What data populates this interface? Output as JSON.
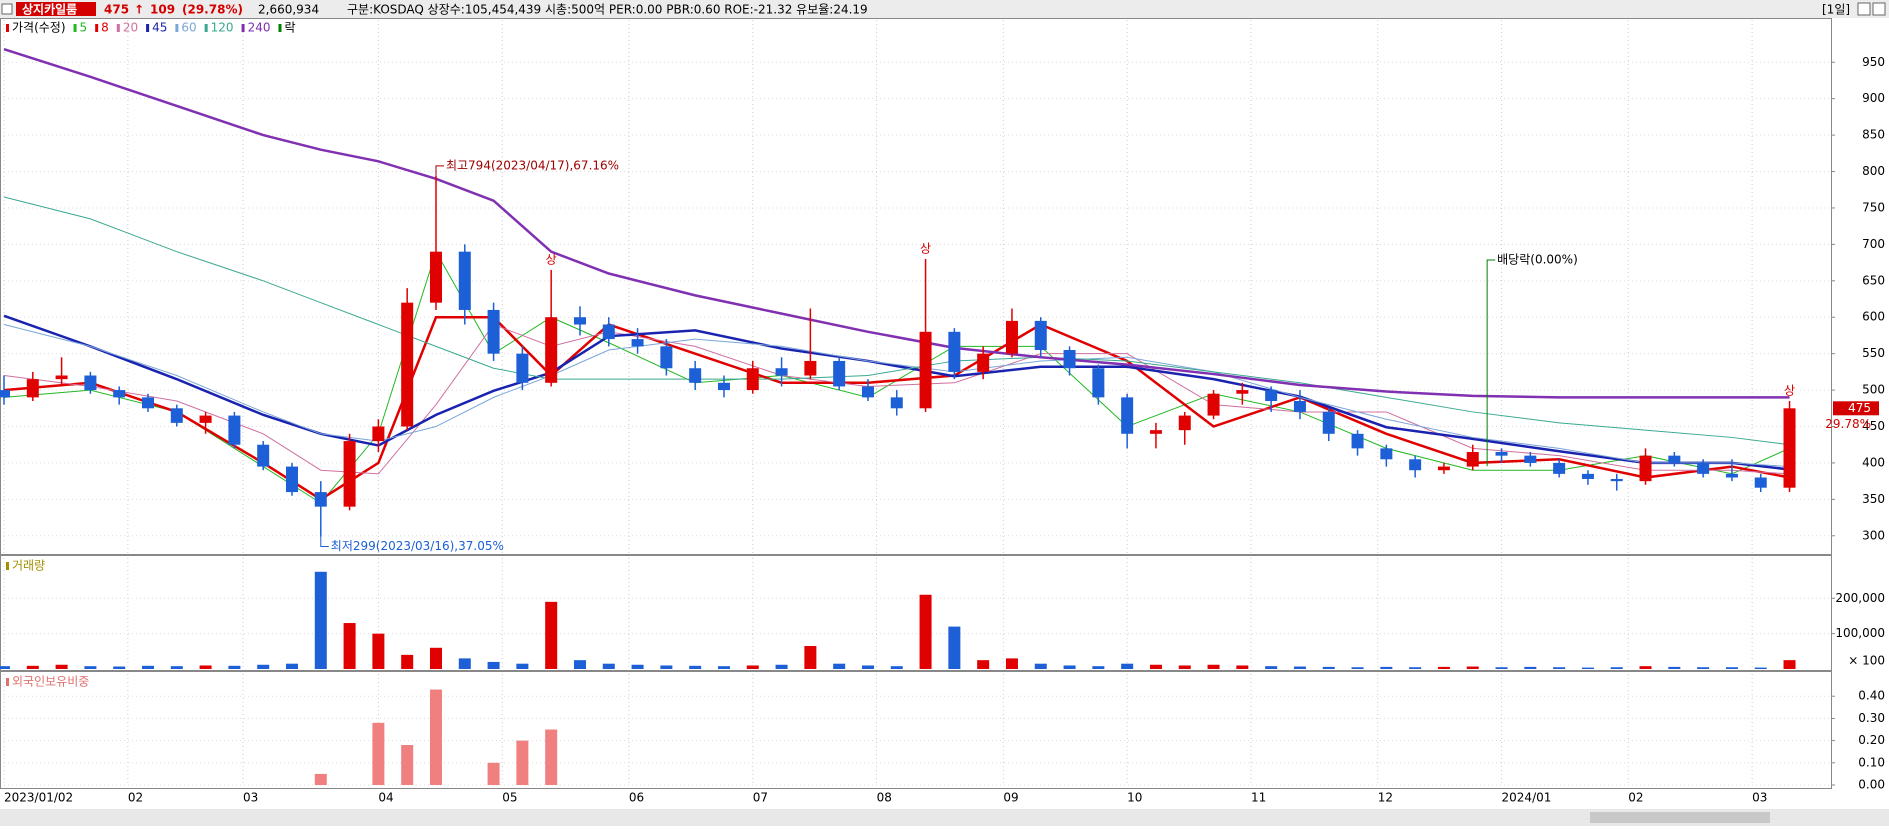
{
  "header": {
    "name": "상지카일룸",
    "price": "475",
    "arrow": "↑",
    "change": "109",
    "change_pct": "(29.78%)",
    "volume": "2,660,934",
    "info": "구분:KOSDAQ 상장수:105,454,439 시총:500억 PER:0.00 PBR:0.60 ROE:-21.32 유보율:24.19",
    "period": "[1일]"
  },
  "chart_data": [
    {
      "type": "candlestick",
      "price_series_name": "가격(수정)",
      "up_color": "#e00000",
      "down_color": "#1c5fd6",
      "ex_dividend_legend": "락",
      "ex_dividend_color": "#008000",
      "open": [
        500,
        490,
        515,
        520,
        500,
        490,
        475,
        455,
        465,
        425,
        395,
        360,
        340,
        430,
        450,
        620,
        690,
        610,
        550,
        510,
        600,
        590,
        570,
        560,
        530,
        510,
        500,
        530,
        520,
        540,
        505,
        490,
        475,
        580,
        525,
        550,
        595,
        555,
        530,
        490,
        440,
        445,
        465,
        495,
        500,
        485,
        470,
        440,
        420,
        405,
        390,
        395,
        415,
        410,
        400,
        385,
        378,
        375,
        410,
        400,
        385,
        380,
        366
      ],
      "high": [
        520,
        525,
        545,
        525,
        505,
        495,
        480,
        470,
        470,
        430,
        400,
        375,
        440,
        460,
        640,
        794,
        700,
        620,
        560,
        665,
        615,
        600,
        585,
        570,
        540,
        520,
        540,
        545,
        612,
        545,
        515,
        500,
        680,
        585,
        560,
        612,
        600,
        560,
        535,
        495,
        455,
        470,
        500,
        510,
        505,
        500,
        475,
        445,
        425,
        410,
        400,
        425,
        420,
        415,
        405,
        390,
        385,
        420,
        415,
        405,
        405,
        385,
        485
      ],
      "low": [
        480,
        485,
        505,
        495,
        480,
        470,
        450,
        440,
        420,
        390,
        355,
        299,
        335,
        415,
        445,
        610,
        590,
        540,
        500,
        505,
        575,
        560,
        550,
        520,
        500,
        490,
        495,
        505,
        515,
        500,
        485,
        465,
        470,
        515,
        515,
        545,
        545,
        520,
        480,
        420,
        420,
        425,
        460,
        480,
        470,
        460,
        430,
        410,
        395,
        380,
        385,
        390,
        400,
        395,
        380,
        370,
        362,
        370,
        395,
        380,
        375,
        360,
        360
      ],
      "close": [
        490,
        515,
        520,
        500,
        490,
        475,
        455,
        465,
        425,
        395,
        360,
        340,
        430,
        450,
        620,
        690,
        610,
        550,
        510,
        600,
        590,
        570,
        560,
        530,
        510,
        500,
        530,
        520,
        540,
        505,
        490,
        475,
        580,
        525,
        550,
        595,
        555,
        530,
        490,
        440,
        445,
        465,
        495,
        500,
        485,
        470,
        440,
        420,
        405,
        390,
        395,
        415,
        410,
        400,
        385,
        378,
        375,
        410,
        400,
        385,
        380,
        366,
        475
      ],
      "ma_x": [
        0,
        3,
        6,
        9,
        11,
        13,
        15,
        17,
        19,
        21,
        24,
        27,
        30,
        33,
        36,
        39,
        42,
        45,
        48,
        51,
        54,
        57,
        60,
        62
      ],
      "ma_series": [
        {
          "name": "5",
          "color": "#22b822",
          "width": 1,
          "values": [
            490,
            500,
            470,
            395,
            345,
            440,
            690,
            550,
            600,
            565,
            510,
            520,
            490,
            560,
            560,
            450,
            495,
            470,
            420,
            390,
            390,
            410,
            385,
            420
          ]
        },
        {
          "name": "8",
          "color": "#e00000",
          "width": 2.5,
          "values": [
            500,
            510,
            470,
            400,
            350,
            400,
            600,
            600,
            520,
            590,
            550,
            510,
            510,
            520,
            590,
            540,
            450,
            490,
            440,
            400,
            405,
            380,
            395,
            380
          ]
        },
        {
          "name": "20",
          "color": "#d070a0",
          "width": 1,
          "values": [
            520,
            505,
            485,
            440,
            390,
            385,
            480,
            590,
            560,
            580,
            560,
            520,
            505,
            510,
            550,
            550,
            480,
            470,
            470,
            420,
            410,
            390,
            390,
            385
          ]
        },
        {
          "name": "45",
          "color": "#1a23b0",
          "width": 2.5,
          "values": [
            602,
            560,
            515,
            466,
            440,
            424,
            466,
            499,
            524,
            574,
            582,
            557,
            540,
            519,
            532,
            532,
            515,
            491,
            449,
            433,
            416,
            400,
            400,
            391
          ]
        },
        {
          "name": "60",
          "color": "#7aa6d8",
          "width": 1,
          "values": [
            590,
            560,
            520,
            470,
            440,
            430,
            450,
            490,
            520,
            555,
            570,
            560,
            540,
            525,
            540,
            545,
            525,
            490,
            460,
            435,
            420,
            400,
            400,
            395
          ]
        },
        {
          "name": "120",
          "color": "#3aa890",
          "width": 1,
          "values": [
            765,
            735,
            690,
            650,
            620,
            590,
            560,
            530,
            515,
            515,
            515,
            515,
            520,
            540,
            545,
            540,
            525,
            510,
            490,
            470,
            455,
            445,
            435,
            425
          ]
        },
        {
          "name": "240",
          "color": "#8030b0",
          "width": 2.5,
          "values": [
            968,
            930,
            890,
            850,
            830,
            814,
            790,
            760,
            690,
            660,
            630,
            605,
            580,
            558,
            545,
            535,
            522,
            507,
            498,
            492,
            490,
            490,
            490,
            490
          ]
        }
      ],
      "ylim": [
        275,
        1008
      ],
      "yticks": [
        300,
        350,
        400,
        450,
        500,
        550,
        600,
        650,
        700,
        750,
        800,
        850,
        900,
        950
      ],
      "annotations": {
        "high": "최고794(2023/04/17),67.16%",
        "low": "최저299(2023/03/16),37.05%",
        "ex_dividend": "배당락(0.00%)",
        "limit_up": "상"
      },
      "last_price": "475",
      "last_pct": "29.78%"
    },
    {
      "type": "bar",
      "title": "거래량",
      "title_color": "#a09000",
      "unit_label": "× 100",
      "values": [
        8000,
        9000,
        12000,
        8000,
        7000,
        9000,
        8000,
        10000,
        9000,
        12000,
        15000,
        275000,
        130000,
        100000,
        40000,
        60000,
        30000,
        20000,
        15000,
        190000,
        25000,
        15000,
        12000,
        10000,
        9000,
        8000,
        10000,
        12000,
        65000,
        15000,
        10000,
        8000,
        210000,
        120000,
        25000,
        30000,
        15000,
        10000,
        8000,
        15000,
        12000,
        10000,
        12000,
        10000,
        8000,
        7000,
        6000,
        5000,
        6000,
        5000,
        6000,
        7000,
        5000,
        6000,
        5000,
        4000,
        5000,
        8000,
        6000,
        5000,
        5000,
        4000,
        25000
      ],
      "ylim": [
        0,
        314000
      ],
      "yticks": [
        {
          "value": 100000,
          "label": "100,000"
        },
        {
          "value": 200000,
          "label": "200,000"
        }
      ]
    },
    {
      "type": "bar",
      "title": "외국인보유비중",
      "title_color": "#e07070",
      "color": "#f08080",
      "values": [
        0,
        0,
        0,
        0,
        0,
        0,
        0,
        0,
        0,
        0,
        0,
        0.05,
        0,
        0.28,
        0.18,
        0.43,
        0,
        0.1,
        0.2,
        0.25,
        0,
        0,
        0,
        0,
        0,
        0,
        0,
        0,
        0,
        0,
        0,
        0,
        0,
        0,
        0,
        0,
        0,
        0,
        0,
        0,
        0,
        0,
        0,
        0,
        0,
        0,
        0,
        0,
        0,
        0,
        0,
        0,
        0,
        0,
        0,
        0,
        0,
        0,
        0,
        0,
        0,
        0,
        0
      ],
      "ylim": [
        0,
        0.5
      ],
      "yticks": [
        {
          "value": 0,
          "label": "0.00"
        },
        {
          "value": 0.1,
          "label": "0.10"
        },
        {
          "value": 0.2,
          "label": "0.20"
        },
        {
          "value": 0.3,
          "label": "0.30"
        },
        {
          "value": 0.4,
          "label": "0.40"
        }
      ],
      "xlim": [
        0,
        63.44
      ],
      "xticks": [
        {
          "value": 0,
          "label": "2023/01/02"
        },
        {
          "value": 4.3,
          "label": "02"
        },
        {
          "value": 8.3,
          "label": "03"
        },
        {
          "value": 13,
          "label": "04"
        },
        {
          "value": 17.3,
          "label": "05"
        },
        {
          "value": 21.7,
          "label": "06"
        },
        {
          "value": 26,
          "label": "07"
        },
        {
          "value": 30.3,
          "label": "08"
        },
        {
          "value": 34.7,
          "label": "09"
        },
        {
          "value": 39,
          "label": "10"
        },
        {
          "value": 43.3,
          "label": "11"
        },
        {
          "value": 47.7,
          "label": "12"
        },
        {
          "value": 52,
          "label": "2024/01"
        },
        {
          "value": 56.4,
          "label": "02"
        },
        {
          "value": 60.7,
          "label": "03"
        }
      ]
    }
  ]
}
